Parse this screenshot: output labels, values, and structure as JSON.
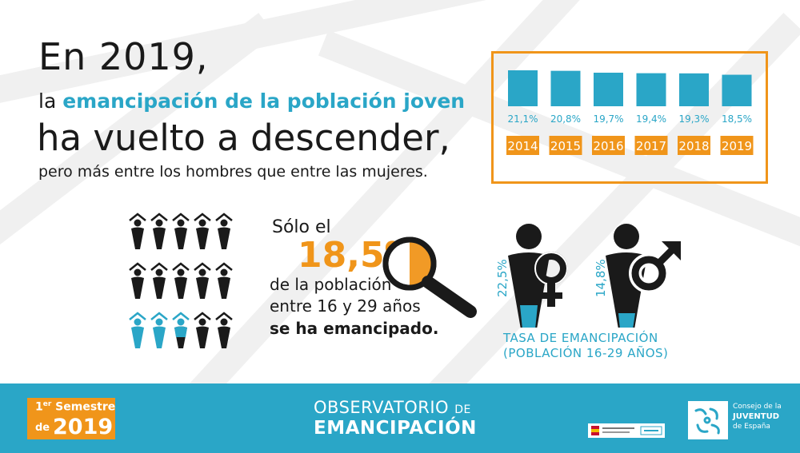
{
  "headline": {
    "line1": "En 2019,",
    "line2_prefix": "la ",
    "line2_highlight": "emancipación de la población joven",
    "line3": "ha vuelto a descender,",
    "line4": "pero más entre los hombres que entre las mujeres."
  },
  "chart_data": {
    "type": "bar",
    "categories": [
      "2014",
      "2015",
      "2016",
      "2017",
      "2018",
      "2019"
    ],
    "values": [
      21.1,
      20.8,
      19.7,
      19.4,
      19.3,
      18.5
    ],
    "value_labels": [
      "21,1%",
      "20,8%",
      "19,7%",
      "19,4%",
      "19,3%",
      "18,5%"
    ],
    "ylim": [
      0,
      21.1
    ],
    "bar_color": "#2aa6c7",
    "label_bg_color": "#f0951a",
    "title": "",
    "xlabel": "",
    "ylabel": ""
  },
  "people": {
    "total": 15,
    "emancipated_fraction": 0.185,
    "color_dark": "#1a1a1a",
    "color_accent": "#2aa6c7"
  },
  "stat": {
    "line1": "Sólo el",
    "big": "18,5%",
    "line2": "de la población",
    "line3": "entre 16 y 29 años",
    "line4": "se ha emancipado."
  },
  "gender": {
    "female": {
      "label": "22,5%",
      "value": 22.5,
      "icon": "female-icon"
    },
    "male": {
      "label": "14,8%",
      "value": 14.8,
      "icon": "male-icon"
    },
    "caption_line1": "TASA DE EMANCIPACIÓN",
    "caption_line2": "(POBLACIÓN 16-29 AÑOS)"
  },
  "footer": {
    "semester_ordinal": "1",
    "semester_sup": "er",
    "semester_word": "Semestre",
    "semester_de": "de",
    "semester_year": "2019",
    "observatorio": "OBSERVATORIO",
    "observatorio_de": "DE",
    "emancipacion": "EMANCIPACIÓN",
    "cje_line1": "Consejo de la",
    "cje_line2": "JUVENTUD",
    "cje_line3": "de España"
  },
  "colors": {
    "accent": "#2aa6c7",
    "orange": "#f0951a",
    "text": "#1a1a1a"
  }
}
